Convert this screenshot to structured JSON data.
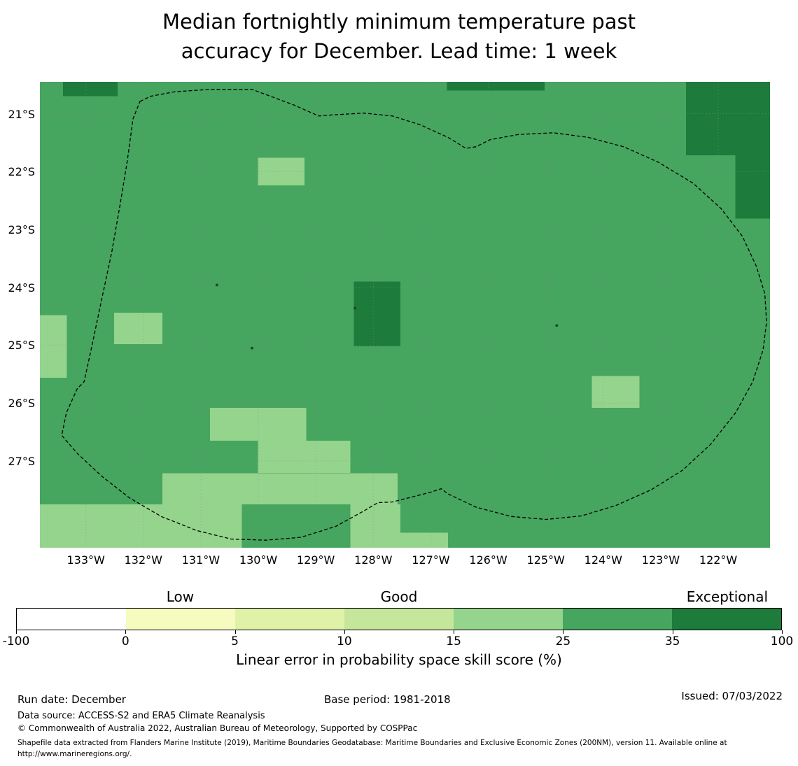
{
  "chart_data": {
    "type": "heatmap",
    "title": "Median fortnightly minimum temperature past\naccuracy for December. Lead time: 1 week",
    "colorbar": {
      "axis_label": "Linear error in probability space skill score (%)",
      "boundaries": [
        -100,
        0,
        5,
        10,
        15,
        25,
        35,
        100
      ],
      "tick_labels": [
        "-100",
        "0",
        "5",
        "10",
        "15",
        "25",
        "35",
        "100"
      ],
      "segment_colors": [
        "#ffffff",
        "#f6fbc0",
        "#e0f2a8",
        "#c4e79b",
        "#95d48c",
        "#46a55f",
        "#1d7c3b"
      ],
      "category_labels": [
        {
          "label": "Low",
          "segment_index": 1
        },
        {
          "label": "Good",
          "segment_index": 3
        },
        {
          "label": "Exceptional",
          "segment_index": 6
        }
      ]
    },
    "map": {
      "extent_deg": {
        "lon_west": 133.8,
        "lon_east": 121.1,
        "lat_north": 20.45,
        "lat_south": 28.5,
        "lon_units": "degW",
        "lat_units": "degS"
      },
      "lat_ticks": [
        21,
        22,
        23,
        24,
        25,
        26,
        27
      ],
      "lat_tick_labels": [
        "21°S",
        "22°S",
        "23°S",
        "24°S",
        "25°S",
        "26°S",
        "27°S"
      ],
      "lon_ticks": [
        133,
        132,
        131,
        130,
        129,
        128,
        127,
        126,
        125,
        124,
        123,
        122
      ],
      "lon_tick_labels": [
        "133°W",
        "132°W",
        "131°W",
        "130°W",
        "129°W",
        "128°W",
        "127°W",
        "126°W",
        "125°W",
        "124°W",
        "123°W",
        "122°W"
      ],
      "background_value": 30,
      "cells": [
        {
          "lon_from": 133.4,
          "lon_to": 132.45,
          "lat_from": 20.45,
          "lat_to": 20.7,
          "value": 50
        },
        {
          "lon_from": 126.72,
          "lon_to": 125.02,
          "lat_from": 20.45,
          "lat_to": 20.6,
          "value": 50
        },
        {
          "lon_from": 122.56,
          "lon_to": 121.1,
          "lat_from": 20.45,
          "lat_to": 21.72,
          "value": 50
        },
        {
          "lon_from": 121.7,
          "lon_to": 121.1,
          "lat_from": 21.72,
          "lat_to": 22.81,
          "value": 50
        },
        {
          "lon_from": 128.34,
          "lon_to": 127.53,
          "lat_from": 23.9,
          "lat_to": 25.02,
          "value": 50
        },
        {
          "lon_from": 130.01,
          "lon_to": 129.2,
          "lat_from": 21.76,
          "lat_to": 22.24,
          "value": 20
        },
        {
          "lon_from": 133.8,
          "lon_to": 133.33,
          "lat_from": 24.48,
          "lat_to": 25.56,
          "value": 20
        },
        {
          "lon_from": 132.51,
          "lon_to": 131.67,
          "lat_from": 24.44,
          "lat_to": 24.98,
          "value": 20
        },
        {
          "lon_from": 124.2,
          "lon_to": 123.37,
          "lat_from": 25.53,
          "lat_to": 26.08,
          "value": 20
        },
        {
          "lon_from": 130.84,
          "lon_to": 129.17,
          "lat_from": 26.08,
          "lat_to": 26.65,
          "value": 20
        },
        {
          "lon_from": 130.01,
          "lon_to": 128.4,
          "lat_from": 26.65,
          "lat_to": 27.21,
          "value": 20
        },
        {
          "lon_from": 131.67,
          "lon_to": 127.58,
          "lat_from": 27.21,
          "lat_to": 27.75,
          "value": 20
        },
        {
          "lon_from": 133.8,
          "lon_to": 130.29,
          "lat_from": 27.75,
          "lat_to": 28.5,
          "value": 20
        },
        {
          "lon_from": 128.4,
          "lon_to": 127.53,
          "lat_from": 27.75,
          "lat_to": 28.5,
          "value": 20
        },
        {
          "lon_from": 127.53,
          "lon_to": 126.7,
          "lat_from": 28.24,
          "lat_to": 28.5,
          "value": 20
        }
      ],
      "islands": [
        {
          "lon": 130.72,
          "lat": 23.96
        },
        {
          "lon": 130.11,
          "lat": 25.05
        },
        {
          "lon": 124.81,
          "lat": 24.66
        },
        {
          "lon": 128.32,
          "lat": 24.36
        }
      ],
      "eez_boundary_deg": [
        [
          132.06,
          20.79
        ],
        [
          131.88,
          20.7
        ],
        [
          131.45,
          20.62
        ],
        [
          130.84,
          20.58
        ],
        [
          130.11,
          20.58
        ],
        [
          129.38,
          20.85
        ],
        [
          128.95,
          21.04
        ],
        [
          128.71,
          21.02
        ],
        [
          128.16,
          20.99
        ],
        [
          127.67,
          21.04
        ],
        [
          127.19,
          21.19
        ],
        [
          126.7,
          21.41
        ],
        [
          126.39,
          21.6
        ],
        [
          126.21,
          21.57
        ],
        [
          125.97,
          21.45
        ],
        [
          125.48,
          21.36
        ],
        [
          124.87,
          21.33
        ],
        [
          124.26,
          21.41
        ],
        [
          123.65,
          21.57
        ],
        [
          123.04,
          21.84
        ],
        [
          122.44,
          22.2
        ],
        [
          121.95,
          22.64
        ],
        [
          121.58,
          23.12
        ],
        [
          121.34,
          23.63
        ],
        [
          121.19,
          24.11
        ],
        [
          121.16,
          24.6
        ],
        [
          121.22,
          25.08
        ],
        [
          121.4,
          25.63
        ],
        [
          121.7,
          26.17
        ],
        [
          122.13,
          26.71
        ],
        [
          122.62,
          27.16
        ],
        [
          123.17,
          27.5
        ],
        [
          123.78,
          27.77
        ],
        [
          124.38,
          27.95
        ],
        [
          124.99,
          28.01
        ],
        [
          125.6,
          27.96
        ],
        [
          126.21,
          27.8
        ],
        [
          126.7,
          27.57
        ],
        [
          126.82,
          27.48
        ],
        [
          127.0,
          27.54
        ],
        [
          127.67,
          27.71
        ],
        [
          127.92,
          27.72
        ],
        [
          128.16,
          27.86
        ],
        [
          128.65,
          28.13
        ],
        [
          129.26,
          28.32
        ],
        [
          129.87,
          28.37
        ],
        [
          130.47,
          28.35
        ],
        [
          131.08,
          28.2
        ],
        [
          131.69,
          27.96
        ],
        [
          132.24,
          27.64
        ],
        [
          132.73,
          27.26
        ],
        [
          133.15,
          26.87
        ],
        [
          133.42,
          26.56
        ],
        [
          133.34,
          26.17
        ],
        [
          133.15,
          25.75
        ],
        [
          133.03,
          25.63
        ],
        [
          132.91,
          25.08
        ],
        [
          132.73,
          24.23
        ],
        [
          132.55,
          23.39
        ],
        [
          132.4,
          22.54
        ],
        [
          132.28,
          21.82
        ],
        [
          132.18,
          21.09
        ]
      ]
    }
  },
  "footer": {
    "run_date": "Run date: December",
    "base_period": "Base period: 1981-2018",
    "issued": "Issued: 07/03/2022",
    "data_source": "Data source: ACCESS-S2 and ERA5 Climate Reanalysis",
    "copyright": "© Commonwealth of Australia 2022, Australian Bureau of Meteorology, Supported by COSPPac",
    "shapefile_note": "Shapefile data extracted from Flanders Marine Institute (2019), Maritime Boundaries Geodatabase: Maritime Boundaries and Exclusive Economic Zones (200NM), version 11. Available online at http://www.marineregions.org/."
  }
}
